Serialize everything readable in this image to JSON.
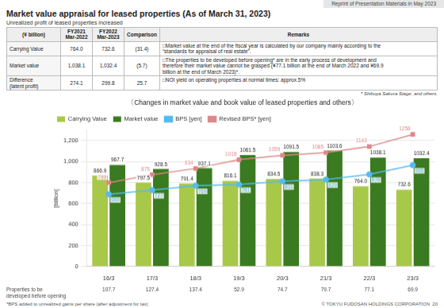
{
  "title": "Market value appraisal for leased properties (As of March 31, 2023)",
  "banner": "Reprint of Presentation Materials in May 2023",
  "subtitle": "Unrealized profit of leased properties increased",
  "table": {
    "headers": [
      "(¥ billion)",
      "FY2021\nMar-2022",
      "FY2022\nMar-2023",
      "Comparison",
      "Remarks"
    ],
    "rows": [
      [
        "Carrying Value",
        "764.0",
        "732.6",
        "(31.4)",
        "□Market value at the end of the fiscal year is calculated by our company mainly according to the\n“standards for appraisal of real estate”."
      ],
      [
        "Market value",
        "1,038.1",
        "1,032.4",
        "(5.7)",
        "□The properties to be developed before opening* are in the early process of development and\ntherefore their market value cannot be grasped (¥77.1 billion at the end of March 2022 and ¥69.9\nbillion at the end of March 2023)*."
      ],
      [
        "Difference\n(latent profit)",
        "274.1",
        "299.8",
        "25.7",
        "□NOI yield on operating properties at normal times: approx.5%"
      ]
    ]
  },
  "table_footnote": "* Shibuya Sakura Stage, and others.",
  "footer": "*BPS added to unrealized gains per share (after adjustment for tax)",
  "copyright": "© TOKYU FUDOSAN HOLDINGS CORPORATION  20",
  "chart_data": {
    "type": "bar",
    "title": "〈Changes in market value and book value of leased properties and others〉",
    "ylabel": "[billion]",
    "categories": [
      "16/3",
      "17/3",
      "18/3",
      "19/3",
      "20/3",
      "21/3",
      "22/3",
      "23/3"
    ],
    "series": [
      {
        "name": "Carrying Value",
        "type": "bar",
        "color": "#a8c84a",
        "values": [
          866.9,
          797.5,
          791.4,
          816.1,
          834.5,
          838.3,
          764.0,
          732.6
        ],
        "value_labels": [
          "866.9",
          "797.5",
          "791.4",
          "816.1",
          "834.5",
          "838.3",
          "764.0",
          "732.6"
        ]
      },
      {
        "name": "Market value",
        "type": "bar",
        "color": "#3a7a20",
        "values": [
          967.7,
          928.5,
          937.1,
          1061.5,
          1091.5,
          1103.6,
          1038.1,
          1032.4
        ]
      },
      {
        "name": "BPS [yen]",
        "type": "line",
        "color": "#55bbee",
        "marker": "circle",
        "values": [
          688,
          727,
          769,
          781,
          811,
          829,
          878,
          965
        ]
      },
      {
        "name": "Revised BPS* [yen]",
        "type": "line",
        "color": "#dd8888",
        "marker": "square",
        "values": [
          799,
          875,
          934,
          1018,
          1059,
          1085,
          1143,
          1258
        ]
      }
    ],
    "ylim": [
      0,
      1300
    ],
    "yticks": [
      0,
      200,
      400,
      600,
      800,
      {
        "value": 1000,
        "label": "1,000"
      },
      {
        "value": 1200,
        "label": "1,200"
      }
    ],
    "grid": true,
    "legend": "upper left",
    "data_labels": true,
    "bottom_row": {
      "label": "Properties to be\ndeveloped before opening",
      "values": [
        107.7,
        127.4,
        137.4,
        52.9,
        74.7,
        79.7,
        77.1,
        69.9
      ]
    }
  }
}
